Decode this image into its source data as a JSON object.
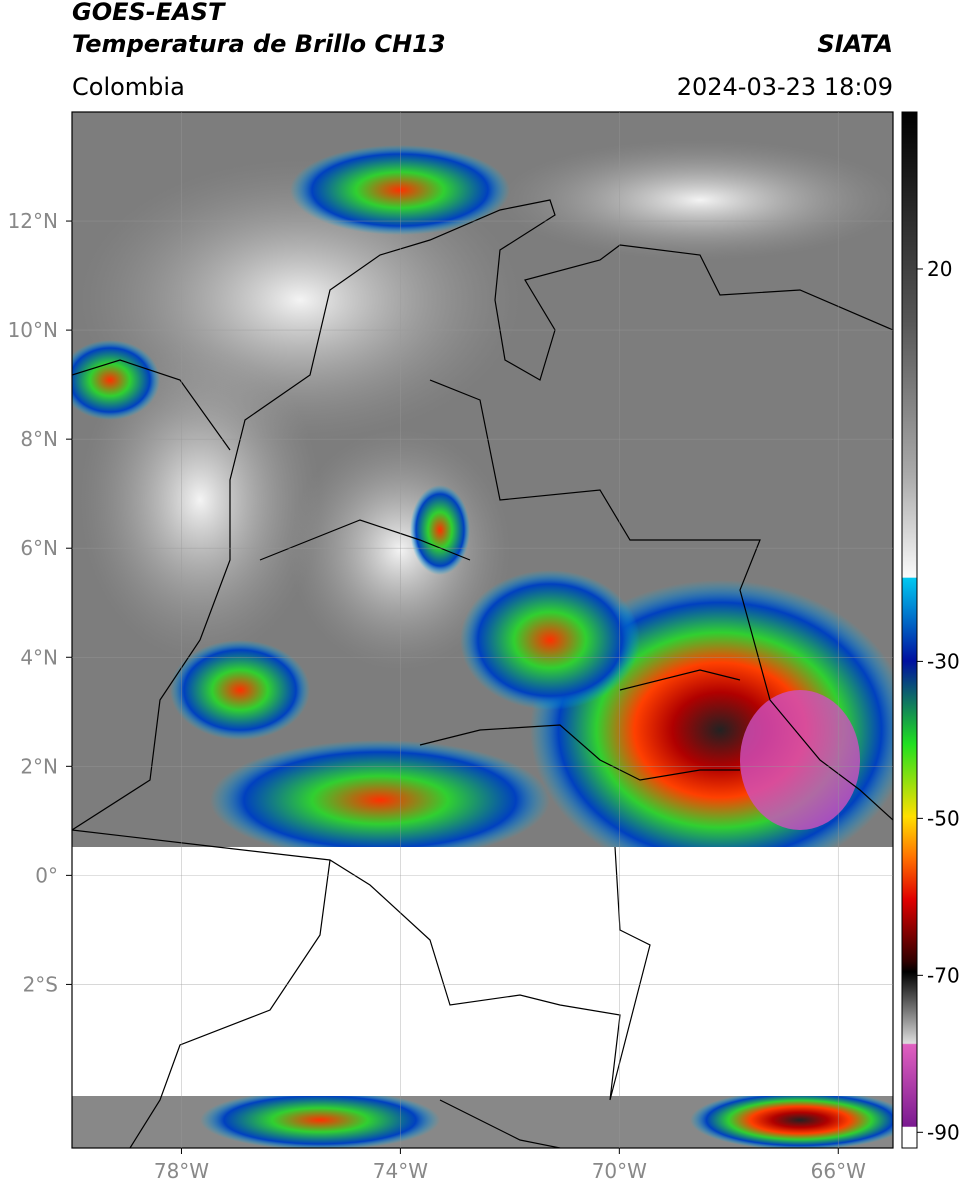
{
  "header": {
    "title": "GOES-EAST",
    "subtitle": "Temperatura de Brillo CH13",
    "source": "SIATA",
    "region": "Colombia",
    "datetime": "2024-03-23 18:09"
  },
  "map": {
    "xlim": [
      -80,
      -65
    ],
    "ylim": [
      -5,
      14
    ],
    "xticks": [
      {
        "value": -78,
        "label": "78°W"
      },
      {
        "value": -74,
        "label": "74°W"
      },
      {
        "value": -70,
        "label": "70°W"
      },
      {
        "value": -66,
        "label": "66°W"
      }
    ],
    "yticks": [
      {
        "value": 12,
        "label": "12°N"
      },
      {
        "value": 10,
        "label": "10°N"
      },
      {
        "value": 8,
        "label": "8°N"
      },
      {
        "value": 6,
        "label": "6°N"
      },
      {
        "value": 4,
        "label": "4°N"
      },
      {
        "value": 2,
        "label": "2°N"
      },
      {
        "value": 0,
        "label": "0°"
      },
      {
        "value": -2,
        "label": "2°S"
      }
    ],
    "grid": true
  },
  "colorbar": {
    "lim": [
      -92,
      40
    ],
    "ticks": [
      20,
      -30,
      -50,
      -70,
      -90
    ]
  }
}
